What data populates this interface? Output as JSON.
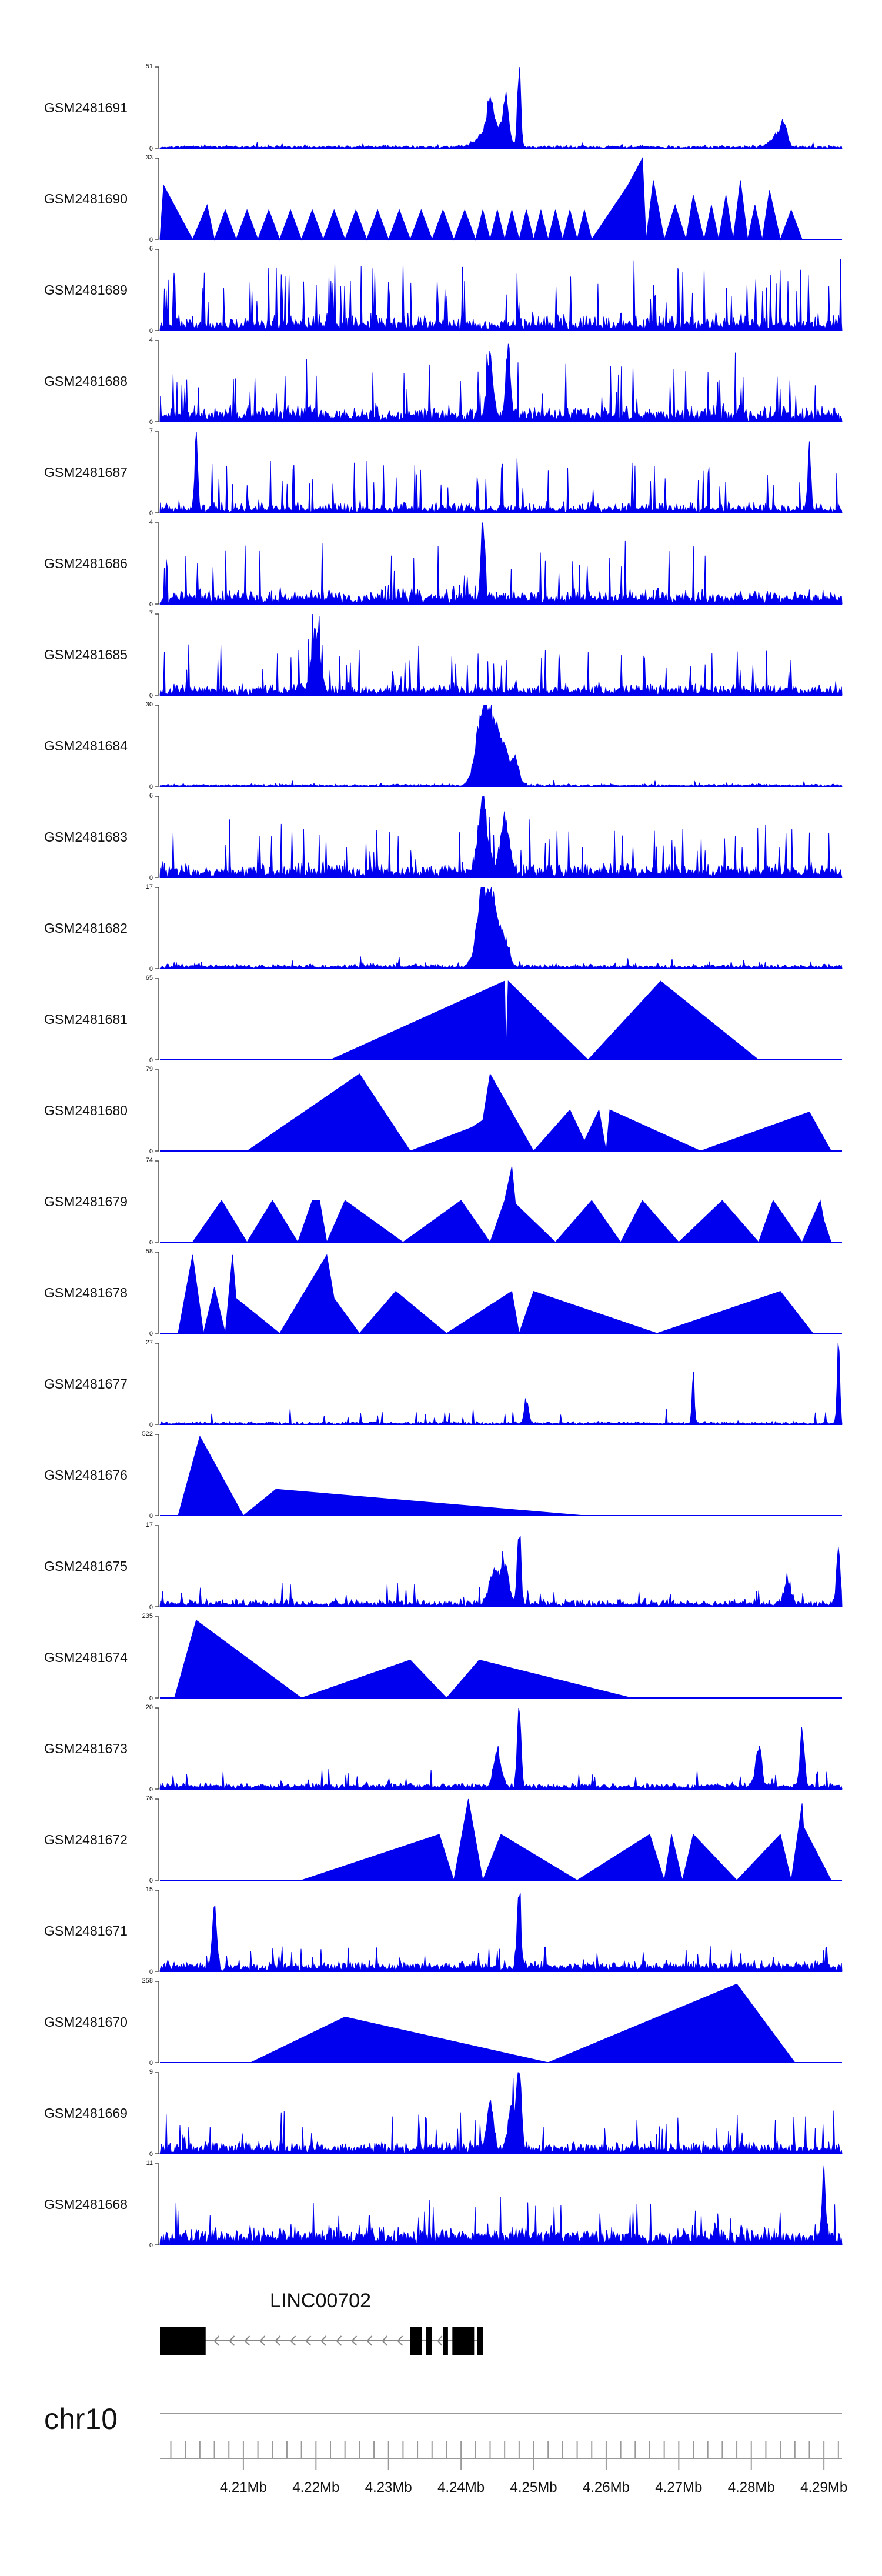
{
  "chart_data": {
    "type": "area",
    "track_color": "#0000ee",
    "chromosome": "chr10",
    "x_range_mb": [
      4.1985,
      4.2925
    ],
    "tracks": [
      {
        "name": "GSM2481691",
        "ymax": 51,
        "style": "dense",
        "n": 600,
        "seed": 11,
        "base": 0.9,
        "noise": 1.5,
        "spikeProb": 0.02,
        "spikeAmp": 3,
        "peaks": [
          {
            "x": 4.248,
            "h": 51,
            "w": 0.00022
          },
          {
            "x": 4.2462,
            "h": 25,
            "w": 0.00035
          },
          {
            "x": 4.244,
            "h": 20,
            "w": 0.0004
          },
          {
            "x": 4.2435,
            "h": 10,
            "w": 0.0012
          },
          {
            "x": 4.2455,
            "h": 10,
            "w": 0.001
          },
          {
            "x": 4.2845,
            "h": 14,
            "w": 0.0004
          },
          {
            "x": 4.2835,
            "h": 8,
            "w": 0.0008
          }
        ]
      },
      {
        "name": "GSM2481690",
        "ymax": 33,
        "style": "tri",
        "pts": [
          [
            4.1985,
            0
          ],
          [
            4.199,
            22
          ],
          [
            4.203,
            0
          ],
          [
            4.205,
            14
          ],
          [
            4.206,
            0
          ],
          [
            4.2075,
            12
          ],
          [
            4.209,
            0
          ],
          [
            4.2105,
            12
          ],
          [
            4.212,
            0
          ],
          [
            4.2135,
            12
          ],
          [
            4.215,
            0
          ],
          [
            4.2165,
            12
          ],
          [
            4.218,
            0
          ],
          [
            4.2195,
            12
          ],
          [
            4.221,
            0
          ],
          [
            4.2225,
            12
          ],
          [
            4.224,
            0
          ],
          [
            4.2255,
            12
          ],
          [
            4.227,
            0
          ],
          [
            4.2285,
            12
          ],
          [
            4.23,
            0
          ],
          [
            4.2315,
            12
          ],
          [
            4.233,
            0
          ],
          [
            4.2345,
            12
          ],
          [
            4.236,
            0
          ],
          [
            4.2375,
            12
          ],
          [
            4.239,
            0
          ],
          [
            4.2405,
            12
          ],
          [
            4.242,
            0
          ],
          [
            4.243,
            12
          ],
          [
            4.244,
            0
          ],
          [
            4.245,
            12
          ],
          [
            4.246,
            0
          ],
          [
            4.247,
            12
          ],
          [
            4.248,
            0
          ],
          [
            4.249,
            12
          ],
          [
            4.25,
            0
          ],
          [
            4.251,
            12
          ],
          [
            4.252,
            0
          ],
          [
            4.253,
            12
          ],
          [
            4.254,
            0
          ],
          [
            4.255,
            12
          ],
          [
            4.256,
            0
          ],
          [
            4.257,
            12
          ],
          [
            4.258,
            0
          ],
          [
            4.263,
            22
          ],
          [
            4.265,
            33
          ],
          [
            4.2655,
            0
          ],
          [
            4.2665,
            24
          ],
          [
            4.268,
            0
          ],
          [
            4.2695,
            14
          ],
          [
            4.271,
            0
          ],
          [
            4.272,
            18
          ],
          [
            4.2735,
            0
          ],
          [
            4.2745,
            14
          ],
          [
            4.2755,
            0
          ],
          [
            4.2765,
            18
          ],
          [
            4.2775,
            0
          ],
          [
            4.2785,
            24
          ],
          [
            4.2795,
            0
          ],
          [
            4.2805,
            14
          ],
          [
            4.2815,
            0
          ],
          [
            4.2825,
            20
          ],
          [
            4.284,
            0
          ],
          [
            4.2855,
            12
          ],
          [
            4.287,
            0
          ]
        ]
      },
      {
        "name": "GSM2481689",
        "ymax": 6,
        "style": "dense",
        "n": 700,
        "seed": 23,
        "base": 0.4,
        "noise": 1.2,
        "spikeProb": 0.09,
        "spikeAmp": 4.3,
        "peaks": []
      },
      {
        "name": "GSM2481688",
        "ymax": 4,
        "style": "dense",
        "n": 700,
        "seed": 37,
        "base": 0.35,
        "noise": 0.7,
        "spikeProb": 0.07,
        "spikeAmp": 2.6,
        "peaks": [
          {
            "x": 4.2465,
            "h": 4,
            "w": 0.0003
          },
          {
            "x": 4.244,
            "h": 3,
            "w": 0.0004
          }
        ]
      },
      {
        "name": "GSM2481687",
        "ymax": 7,
        "style": "dense",
        "n": 700,
        "seed": 41,
        "base": 0.3,
        "noise": 0.9,
        "spikeProb": 0.06,
        "spikeAmp": 4.2,
        "peaks": [
          {
            "x": 4.2035,
            "h": 7,
            "w": 0.0002
          },
          {
            "x": 4.288,
            "h": 6,
            "w": 0.0002
          }
        ]
      },
      {
        "name": "GSM2481686",
        "ymax": 4,
        "style": "dense",
        "n": 700,
        "seed": 53,
        "base": 0.3,
        "noise": 0.8,
        "spikeProb": 0.06,
        "spikeAmp": 2.7,
        "peaks": [
          {
            "x": 4.243,
            "h": 4,
            "w": 0.00025
          }
        ]
      },
      {
        "name": "GSM2481685",
        "ymax": 7,
        "style": "dense",
        "n": 700,
        "seed": 67,
        "base": 0.4,
        "noise": 1.0,
        "spikeProb": 0.06,
        "spikeAmp": 3.6,
        "peaks": [
          {
            "x": 4.22,
            "h": 5,
            "w": 0.0006
          }
        ]
      },
      {
        "name": "GSM2481684",
        "ymax": 30,
        "style": "dense",
        "n": 600,
        "seed": 71,
        "base": 0.3,
        "noise": 1.0,
        "spikeProb": 0.01,
        "spikeAmp": 2,
        "peaks": [
          {
            "x": 4.243,
            "h": 27,
            "w": 0.0009
          },
          {
            "x": 4.2445,
            "h": 20,
            "w": 0.0008
          },
          {
            "x": 4.246,
            "h": 12,
            "w": 0.0006
          },
          {
            "x": 4.2475,
            "h": 10,
            "w": 0.0005
          }
        ]
      },
      {
        "name": "GSM2481683",
        "ymax": 6,
        "style": "dense",
        "n": 700,
        "seed": 83,
        "base": 0.5,
        "noise": 1.0,
        "spikeProb": 0.06,
        "spikeAmp": 3.2,
        "peaks": [
          {
            "x": 4.243,
            "h": 5.5,
            "w": 0.0006
          },
          {
            "x": 4.246,
            "h": 4,
            "w": 0.0006
          }
        ]
      },
      {
        "name": "GSM2481682",
        "ymax": 17,
        "style": "dense",
        "n": 600,
        "seed": 97,
        "base": 0.5,
        "noise": 1.0,
        "spikeProb": 0.015,
        "spikeAmp": 2,
        "peaks": [
          {
            "x": 4.243,
            "h": 16,
            "w": 0.0008
          },
          {
            "x": 4.2445,
            "h": 12,
            "w": 0.0007
          },
          {
            "x": 4.246,
            "h": 5,
            "w": 0.0006
          }
        ]
      },
      {
        "name": "GSM2481681",
        "ymax": 65,
        "style": "tri",
        "pts": [
          [
            4.222,
            0
          ],
          [
            4.246,
            63
          ],
          [
            4.2462,
            3
          ],
          [
            4.2465,
            63
          ],
          [
            4.2575,
            0
          ],
          [
            4.2675,
            63
          ],
          [
            4.281,
            0
          ]
        ]
      },
      {
        "name": "GSM2481680",
        "ymax": 79,
        "style": "tri",
        "pts": [
          [
            4.2105,
            0
          ],
          [
            4.226,
            75
          ],
          [
            4.233,
            0
          ],
          [
            4.2415,
            23
          ],
          [
            4.243,
            30
          ],
          [
            4.244,
            75
          ],
          [
            4.25,
            0
          ],
          [
            4.255,
            40
          ],
          [
            4.257,
            10
          ],
          [
            4.259,
            40
          ],
          [
            4.26,
            0
          ],
          [
            4.2605,
            40
          ],
          [
            4.273,
            0
          ],
          [
            4.288,
            38
          ],
          [
            4.291,
            0
          ]
        ]
      },
      {
        "name": "GSM2481679",
        "ymax": 74,
        "style": "tri",
        "pts": [
          [
            4.203,
            0
          ],
          [
            4.207,
            38
          ],
          [
            4.2105,
            0
          ],
          [
            4.214,
            38
          ],
          [
            4.2175,
            0
          ],
          [
            4.2195,
            38
          ],
          [
            4.2205,
            38
          ],
          [
            4.2215,
            0
          ],
          [
            4.224,
            38
          ],
          [
            4.232,
            0
          ],
          [
            4.24,
            38
          ],
          [
            4.244,
            0
          ],
          [
            4.246,
            38
          ],
          [
            4.247,
            69
          ],
          [
            4.2475,
            35
          ],
          [
            4.253,
            0
          ],
          [
            4.258,
            38
          ],
          [
            4.262,
            0
          ],
          [
            4.265,
            38
          ],
          [
            4.27,
            0
          ],
          [
            4.276,
            38
          ],
          [
            4.281,
            0
          ],
          [
            4.283,
            38
          ],
          [
            4.287,
            0
          ],
          [
            4.2895,
            38
          ],
          [
            4.29,
            20
          ],
          [
            4.291,
            0
          ]
        ]
      },
      {
        "name": "GSM2481678",
        "ymax": 58,
        "style": "tri",
        "pts": [
          [
            4.201,
            0
          ],
          [
            4.203,
            56
          ],
          [
            4.2045,
            0
          ],
          [
            4.206,
            33
          ],
          [
            4.2075,
            0
          ],
          [
            4.2085,
            56
          ],
          [
            4.209,
            25
          ],
          [
            4.215,
            0
          ],
          [
            4.2215,
            56
          ],
          [
            4.2225,
            25
          ],
          [
            4.226,
            0
          ],
          [
            4.231,
            30
          ],
          [
            4.238,
            0
          ],
          [
            4.247,
            30
          ],
          [
            4.248,
            0
          ],
          [
            4.25,
            30
          ],
          [
            4.267,
            0
          ],
          [
            4.284,
            30
          ],
          [
            4.2885,
            0
          ]
        ]
      },
      {
        "name": "GSM2481677",
        "ymax": 27,
        "style": "dense",
        "n": 600,
        "seed": 109,
        "base": 0.4,
        "noise": 0.9,
        "spikeProb": 0.04,
        "spikeAmp": 4.5,
        "peaks": [
          {
            "x": 4.272,
            "h": 19,
            "w": 0.00015
          },
          {
            "x": 4.292,
            "h": 27,
            "w": 0.00018
          },
          {
            "x": 4.249,
            "h": 8,
            "w": 0.0003
          }
        ]
      },
      {
        "name": "GSM2481676",
        "ymax": 522,
        "style": "tri",
        "pts": [
          [
            4.201,
            0
          ],
          [
            4.204,
            510
          ],
          [
            4.21,
            0
          ],
          [
            4.2145,
            170
          ],
          [
            4.257,
            0
          ]
        ]
      },
      {
        "name": "GSM2481675",
        "ymax": 17,
        "style": "dense",
        "n": 650,
        "seed": 127,
        "base": 0.7,
        "noise": 1.5,
        "spikeProb": 0.03,
        "spikeAmp": 4,
        "peaks": [
          {
            "x": 4.248,
            "h": 17,
            "w": 0.00025
          },
          {
            "x": 4.246,
            "h": 8,
            "w": 0.0006
          },
          {
            "x": 4.2445,
            "h": 7,
            "w": 0.0006
          },
          {
            "x": 4.292,
            "h": 12,
            "w": 0.00025
          },
          {
            "x": 4.285,
            "h": 6,
            "w": 0.0004
          }
        ]
      },
      {
        "name": "GSM2481674",
        "ymax": 235,
        "style": "tri",
        "pts": [
          [
            4.2005,
            0
          ],
          [
            4.2035,
            225
          ],
          [
            4.218,
            0
          ],
          [
            4.233,
            110
          ],
          [
            4.238,
            0
          ],
          [
            4.2425,
            110
          ],
          [
            4.2635,
            0
          ]
        ]
      },
      {
        "name": "GSM2481673",
        "ymax": 20,
        "style": "dense",
        "n": 600,
        "seed": 139,
        "base": 1.0,
        "noise": 1.0,
        "spikeProb": 0.04,
        "spikeAmp": 4,
        "peaks": [
          {
            "x": 4.248,
            "h": 20,
            "w": 0.00025
          },
          {
            "x": 4.245,
            "h": 9,
            "w": 0.0005
          },
          {
            "x": 4.281,
            "h": 10,
            "w": 0.0004
          },
          {
            "x": 4.287,
            "h": 14,
            "w": 0.0003
          }
        ]
      },
      {
        "name": "GSM2481672",
        "ymax": 76,
        "style": "tri",
        "pts": [
          [
            4.218,
            0
          ],
          [
            4.237,
            43
          ],
          [
            4.239,
            0
          ],
          [
            4.241,
            76
          ],
          [
            4.243,
            0
          ],
          [
            4.2455,
            43
          ],
          [
            4.256,
            0
          ],
          [
            4.266,
            43
          ],
          [
            4.268,
            0
          ],
          [
            4.269,
            43
          ],
          [
            4.2705,
            0
          ],
          [
            4.272,
            43
          ],
          [
            4.278,
            0
          ],
          [
            4.284,
            43
          ],
          [
            4.2855,
            0
          ],
          [
            4.287,
            72
          ],
          [
            4.2872,
            50
          ],
          [
            4.291,
            0
          ]
        ]
      },
      {
        "name": "GSM2481671",
        "ymax": 15,
        "style": "dense",
        "n": 650,
        "seed": 151,
        "base": 1.2,
        "noise": 1.3,
        "spikeProb": 0.05,
        "spikeAmp": 4,
        "peaks": [
          {
            "x": 4.248,
            "h": 15,
            "w": 0.00025
          },
          {
            "x": 4.206,
            "h": 10,
            "w": 0.0003
          }
        ]
      },
      {
        "name": "GSM2481670",
        "ymax": 258,
        "style": "tri",
        "pts": [
          [
            4.211,
            0
          ],
          [
            4.224,
            145
          ],
          [
            4.252,
            0
          ],
          [
            4.278,
            250
          ],
          [
            4.286,
            0
          ]
        ]
      },
      {
        "name": "GSM2481669",
        "ymax": 9,
        "style": "dense",
        "n": 700,
        "seed": 163,
        "base": 0.6,
        "noise": 1.2,
        "spikeProb": 0.05,
        "spikeAmp": 4,
        "peaks": [
          {
            "x": 4.248,
            "h": 9,
            "w": 0.0003
          },
          {
            "x": 4.244,
            "h": 6,
            "w": 0.0004
          },
          {
            "x": 4.247,
            "h": 5,
            "w": 0.0005
          }
        ]
      },
      {
        "name": "GSM2481668",
        "ymax": 11,
        "style": "dense",
        "n": 700,
        "seed": 179,
        "base": 1.5,
        "noise": 1.5,
        "spikeProb": 0.05,
        "spikeAmp": 5,
        "peaks": [
          {
            "x": 4.29,
            "h": 11,
            "w": 0.0002
          }
        ]
      }
    ],
    "gene": {
      "name": "LINC00702",
      "strand": "-",
      "start_mb": 4.1985,
      "end_mb": 4.243,
      "exons_mb": [
        [
          4.1985,
          4.2048
        ],
        [
          4.233,
          4.2346
        ],
        [
          4.2352,
          4.236
        ],
        [
          4.2375,
          4.2382
        ],
        [
          4.2388,
          4.2418
        ],
        [
          4.2422,
          4.243
        ]
      ]
    },
    "x_ticks_mb": [
      4.21,
      4.22,
      4.23,
      4.24,
      4.25,
      4.26,
      4.27,
      4.28,
      4.29
    ],
    "x_tick_labels": [
      "4.21Mb",
      "4.22Mb",
      "4.23Mb",
      "4.24Mb",
      "4.25Mb",
      "4.26Mb",
      "4.27Mb",
      "4.28Mb",
      "4.29Mb"
    ],
    "minor_tick_step_mb": 0.002
  }
}
